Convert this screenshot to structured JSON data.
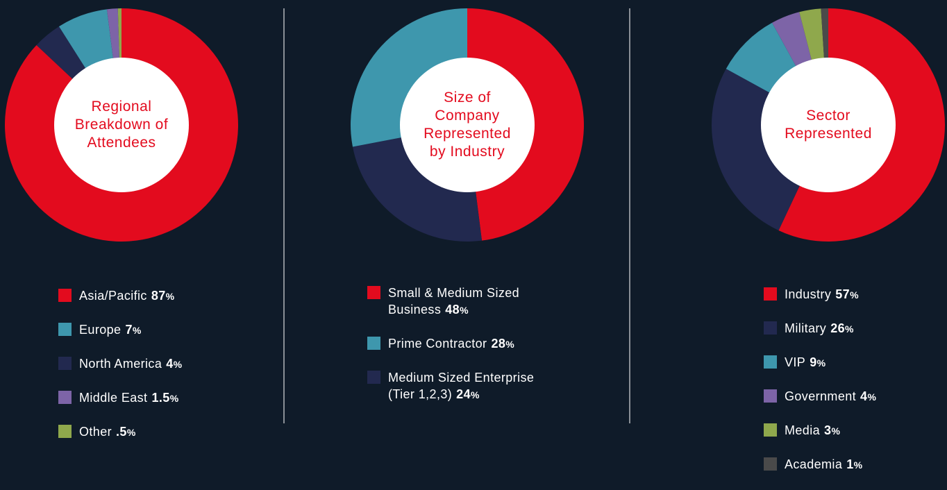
{
  "charts": [
    {
      "type": "pie",
      "title": "Regional\nBreakdown of\nAttendees",
      "slices": [
        {
          "label": "Asia/Pacific",
          "value": 87,
          "display": "87",
          "color": "#e30b1e"
        },
        {
          "label": "North America",
          "value": 4,
          "display": "4",
          "color": "#22294f"
        },
        {
          "label": "Europe",
          "value": 7,
          "display": "7",
          "color": "#3e97ad"
        },
        {
          "label": "Middle East",
          "value": 1.5,
          "display": "1.5",
          "color": "#7d64a7"
        },
        {
          "label": "Other",
          "value": 0.5,
          "display": ".5",
          "color": "#8fa84c"
        }
      ],
      "legend_order": [
        0,
        2,
        1,
        3,
        4
      ]
    },
    {
      "type": "pie",
      "title": "Size of\nCompany\nRepresented\nby Industry",
      "slices": [
        {
          "label": "Small & Medium Sized\nBusiness",
          "value": 48,
          "display": "48",
          "color": "#e30b1e"
        },
        {
          "label": "Medium Sized Enterprise\n(Tier 1,2,3)",
          "value": 24,
          "display": "24",
          "color": "#22294f"
        },
        {
          "label": "Prime Contractor",
          "value": 28,
          "display": "28",
          "color": "#3e97ad"
        }
      ],
      "legend_order": [
        0,
        2,
        1
      ]
    },
    {
      "type": "pie",
      "title": "Sector\nRepresented",
      "slices": [
        {
          "label": "Industry",
          "value": 57,
          "display": "57",
          "color": "#e30b1e"
        },
        {
          "label": "Military",
          "value": 26,
          "display": "26",
          "color": "#22294f"
        },
        {
          "label": "VIP",
          "value": 9,
          "display": "9",
          "color": "#3e97ad"
        },
        {
          "label": "Government",
          "value": 4,
          "display": "4",
          "color": "#7d64a7"
        },
        {
          "label": "Media",
          "value": 3,
          "display": "3",
          "color": "#8fa84c"
        },
        {
          "label": "Academia",
          "value": 1,
          "display": "1",
          "color": "#4a4a4a"
        }
      ],
      "legend_order": [
        0,
        1,
        2,
        3,
        4,
        5
      ]
    }
  ],
  "chart_data": [
    {
      "type": "pie",
      "title": "Regional Breakdown of Attendees",
      "labels": [
        "Asia/Pacific",
        "Europe",
        "North America",
        "Middle East",
        "Other"
      ],
      "values": [
        87,
        7,
        4,
        1.5,
        0.5
      ]
    },
    {
      "type": "pie",
      "title": "Size of Company Represented by Industry",
      "labels": [
        "Small & Medium Sized Business",
        "Prime Contractor",
        "Medium Sized Enterprise (Tier 1,2,3)"
      ],
      "values": [
        48,
        28,
        24
      ]
    },
    {
      "type": "pie",
      "title": "Sector Represented",
      "labels": [
        "Industry",
        "Military",
        "VIP",
        "Government",
        "Media",
        "Academia"
      ],
      "values": [
        57,
        26,
        9,
        4,
        3,
        1
      ]
    }
  ],
  "pct_symbol": "%"
}
